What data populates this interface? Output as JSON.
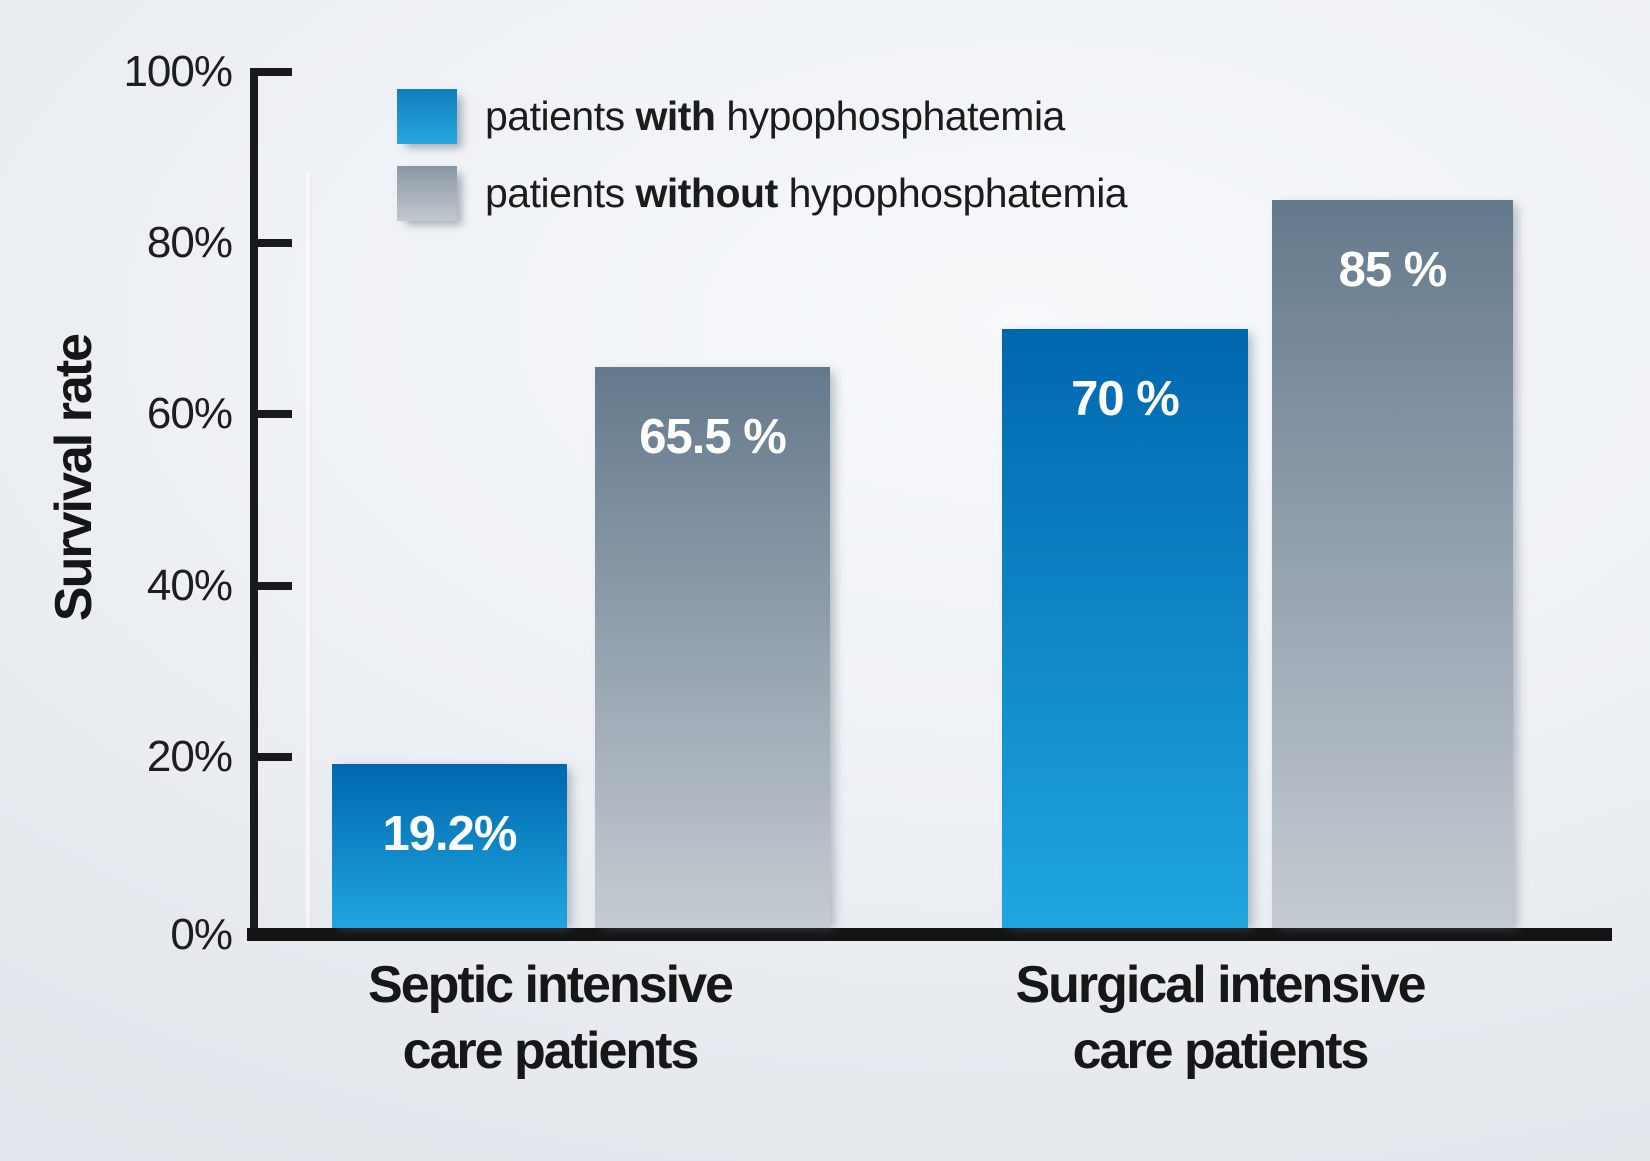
{
  "chart_data": {
    "type": "bar",
    "title": "",
    "ylabel": "Survival rate",
    "xlabel": "",
    "categories": [
      "Septic intensive care patients",
      "Surgical intensive care patients"
    ],
    "series": [
      {
        "name": "patients with hypophosphatemia",
        "values": [
          19.2,
          70
        ],
        "data_labels": [
          "19.2%",
          "70 %"
        ]
      },
      {
        "name": "patients without hypophosphatemia",
        "values": [
          65.5,
          85
        ],
        "data_labels": [
          "65.5 %",
          "85 %"
        ]
      }
    ],
    "ylim": [
      0,
      100
    ],
    "yticks": [
      "0%",
      "20%",
      "40%",
      "60%",
      "80%",
      "100%"
    ],
    "grid": false,
    "legend_position": "top-left"
  },
  "axis": {
    "ylabel": "Survival rate",
    "ticks": [
      {
        "label": "100%",
        "pct": 100
      },
      {
        "label": "80%",
        "pct": 80
      },
      {
        "label": "60%",
        "pct": 60
      },
      {
        "label": "40%",
        "pct": 40
      },
      {
        "label": "20%",
        "pct": 20
      },
      {
        "label": "0%",
        "pct": 0
      }
    ]
  },
  "legend": {
    "items": [
      {
        "swatch": "blue",
        "pre": "patients ",
        "emph": "with",
        "post": " hypophosphatemia"
      },
      {
        "swatch": "gray",
        "pre": "patients ",
        "emph": "without",
        "post": " hypophosphatemia"
      }
    ]
  },
  "bars": [
    {
      "id": "septic-with",
      "category_index": 0,
      "series_index": 0,
      "value": 19.2,
      "label": "19.2%"
    },
    {
      "id": "septic-without",
      "category_index": 0,
      "series_index": 1,
      "value": 65.5,
      "label": "65.5 %"
    },
    {
      "id": "surgical-with",
      "category_index": 1,
      "series_index": 0,
      "value": 70,
      "label": "70 %"
    },
    {
      "id": "surgical-without",
      "category_index": 1,
      "series_index": 1,
      "value": 85,
      "label": "85 %"
    }
  ],
  "categories": [
    {
      "line1": "Septic intensive",
      "line2": "care patients"
    },
    {
      "line1": "Surgical intensive",
      "line2": "care patients"
    }
  ],
  "colors": {
    "blue_top": "#0067af",
    "blue_bottom": "#1fa6de",
    "gray_top": "#64798c",
    "gray_bottom": "#c5cbd2",
    "legend_blue_top": "#137dbe",
    "legend_blue_bottom": "#25a8e0",
    "legend_gray_top": "#8a97a3",
    "legend_gray_bottom": "#c2c8cf",
    "axis": "#1a1a1a",
    "value_label_text": "#ffffff"
  }
}
